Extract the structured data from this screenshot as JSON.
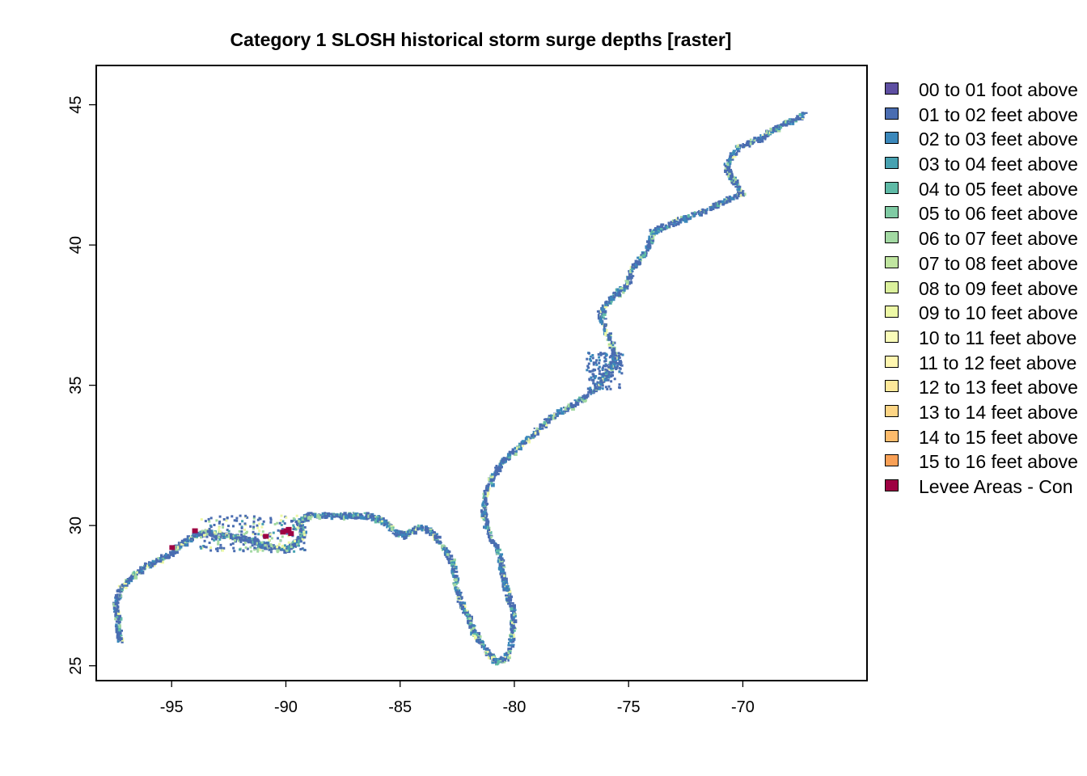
{
  "title": "Category 1 SLOSH historical storm surge depths [raster]",
  "axes": {
    "x_ticks": [
      "-95",
      "-90",
      "-85",
      "-80",
      "-75",
      "-70"
    ],
    "y_ticks": [
      "25",
      "30",
      "35",
      "40",
      "45"
    ],
    "xlim": [
      -98.3,
      -64.6
    ],
    "ylim": [
      24.5,
      46.4
    ]
  },
  "legend": {
    "items": [
      {
        "label": "00 to 01 foot above",
        "color": "#5e4fa2"
      },
      {
        "label": "01 to 02 feet above",
        "color": "#4a6db1"
      },
      {
        "label": "02 to 03 feet above",
        "color": "#3b88bb"
      },
      {
        "label": "03 to 04 feet above",
        "color": "#48a2b1"
      },
      {
        "label": "04 to 05 feet above",
        "color": "#5fbaa6"
      },
      {
        "label": "05 to 06 feet above",
        "color": "#80cba4"
      },
      {
        "label": "06 to 07 feet above",
        "color": "#a3d9a3"
      },
      {
        "label": "07 to 08 feet above",
        "color": "#c0e5a0"
      },
      {
        "label": "08 to 09 feet above",
        "color": "#dbf09c"
      },
      {
        "label": "09 to 10 feet above",
        "color": "#edf8a6"
      },
      {
        "label": "10 to 11 feet above",
        "color": "#fafcb9"
      },
      {
        "label": "11 to 12 feet above",
        "color": "#fff6b0"
      },
      {
        "label": "12 to 13 feet above",
        "color": "#fee89a"
      },
      {
        "label": "13 to 14 feet above",
        "color": "#fdd585"
      },
      {
        "label": "14 to 15 feet above",
        "color": "#fdbb6c"
      },
      {
        "label": "15 to 16 feet above",
        "color": "#f9a056"
      },
      {
        "label": "Levee Areas - Con",
        "color": "#9e0142"
      }
    ]
  },
  "coast_color": "#4a6db1",
  "accent_colors": [
    "#a3d9a3",
    "#edf8a6",
    "#9e0142"
  ]
}
